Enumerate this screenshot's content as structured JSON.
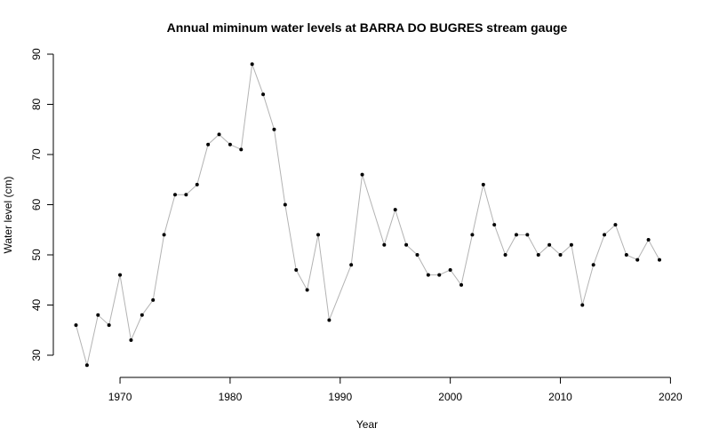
{
  "chart_data": {
    "type": "line",
    "title": "Annual miminum water levels at BARRA DO BUGRES stream gauge",
    "xlabel": "Year",
    "ylabel": "Water level (cm)",
    "xlim": [
      1966,
      2020
    ],
    "ylim": [
      25,
      90
    ],
    "xticks": [
      1970,
      1980,
      1990,
      2000,
      2010,
      2020
    ],
    "yticks": [
      30,
      40,
      50,
      60,
      70,
      80,
      90
    ],
    "grid": false,
    "line_color": "#b3b3b3",
    "point_color": "#000000",
    "series": [
      {
        "x": [
          1966,
          1967,
          1968,
          1969,
          1970,
          1971,
          1972,
          1973,
          1974,
          1975,
          1976,
          1977,
          1978,
          1979,
          1980,
          1981,
          1982,
          1983,
          1984,
          1985,
          1986,
          1987,
          1988,
          1989,
          1991,
          1992,
          1994,
          1995,
          1996,
          1997,
          1998,
          1999,
          2000,
          2001,
          2002,
          2003,
          2004,
          2005,
          2006,
          2007,
          2008,
          2009,
          2010,
          2011,
          2012,
          2013,
          2014,
          2015,
          2016,
          2017,
          2018,
          2019
        ],
        "values": [
          36,
          28,
          38,
          36,
          46,
          33,
          38,
          41,
          54,
          62,
          62,
          64,
          72,
          74,
          72,
          71,
          88,
          82,
          75,
          60,
          47,
          43,
          54,
          37,
          48,
          66,
          52,
          59,
          52,
          50,
          46,
          46,
          47,
          44,
          54,
          64,
          56,
          50,
          54,
          54,
          50,
          52,
          50,
          52,
          40,
          48,
          54,
          56,
          50,
          49,
          53,
          49
        ]
      }
    ]
  }
}
